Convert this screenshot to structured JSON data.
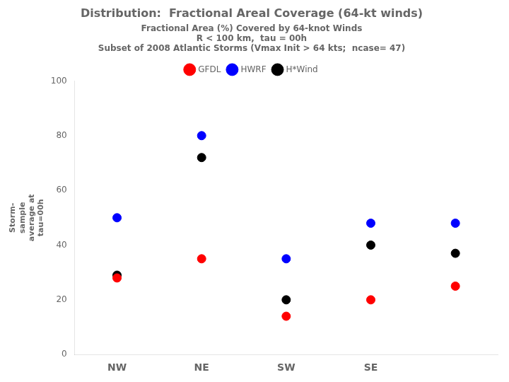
{
  "chart_data": {
    "type": "dot",
    "title": "Distribution:  Fractional Areal Coverage (64-kt winds)",
    "subtitle": [
      "Fractional Area (%) Covered by 64-knot Winds",
      "R < 100 km,  tau = 00h",
      "Subset of 2008 Atlantic Storms (Vmax Init > 64 kts;  ncase= 47)"
    ],
    "y_label": "Storm-\nsample\naverage at\ntau=00h",
    "categories": [
      "NW",
      "NE",
      "SW",
      "SE",
      null
    ],
    "series": [
      {
        "name": "GFDL",
        "color": "#FF0000",
        "values": [
          28,
          35,
          14,
          20,
          25
        ]
      },
      {
        "name": "HWRF",
        "color": "#0000FF",
        "values": [
          50,
          80,
          35,
          48,
          48
        ]
      },
      {
        "name": "H*Wind",
        "color": "#000000",
        "values": [
          29,
          72,
          20,
          40,
          37
        ]
      }
    ],
    "ylim": [
      0,
      100
    ],
    "yticks": [
      0,
      20,
      40,
      60,
      80,
      100
    ],
    "grid": false,
    "legend": "top"
  }
}
